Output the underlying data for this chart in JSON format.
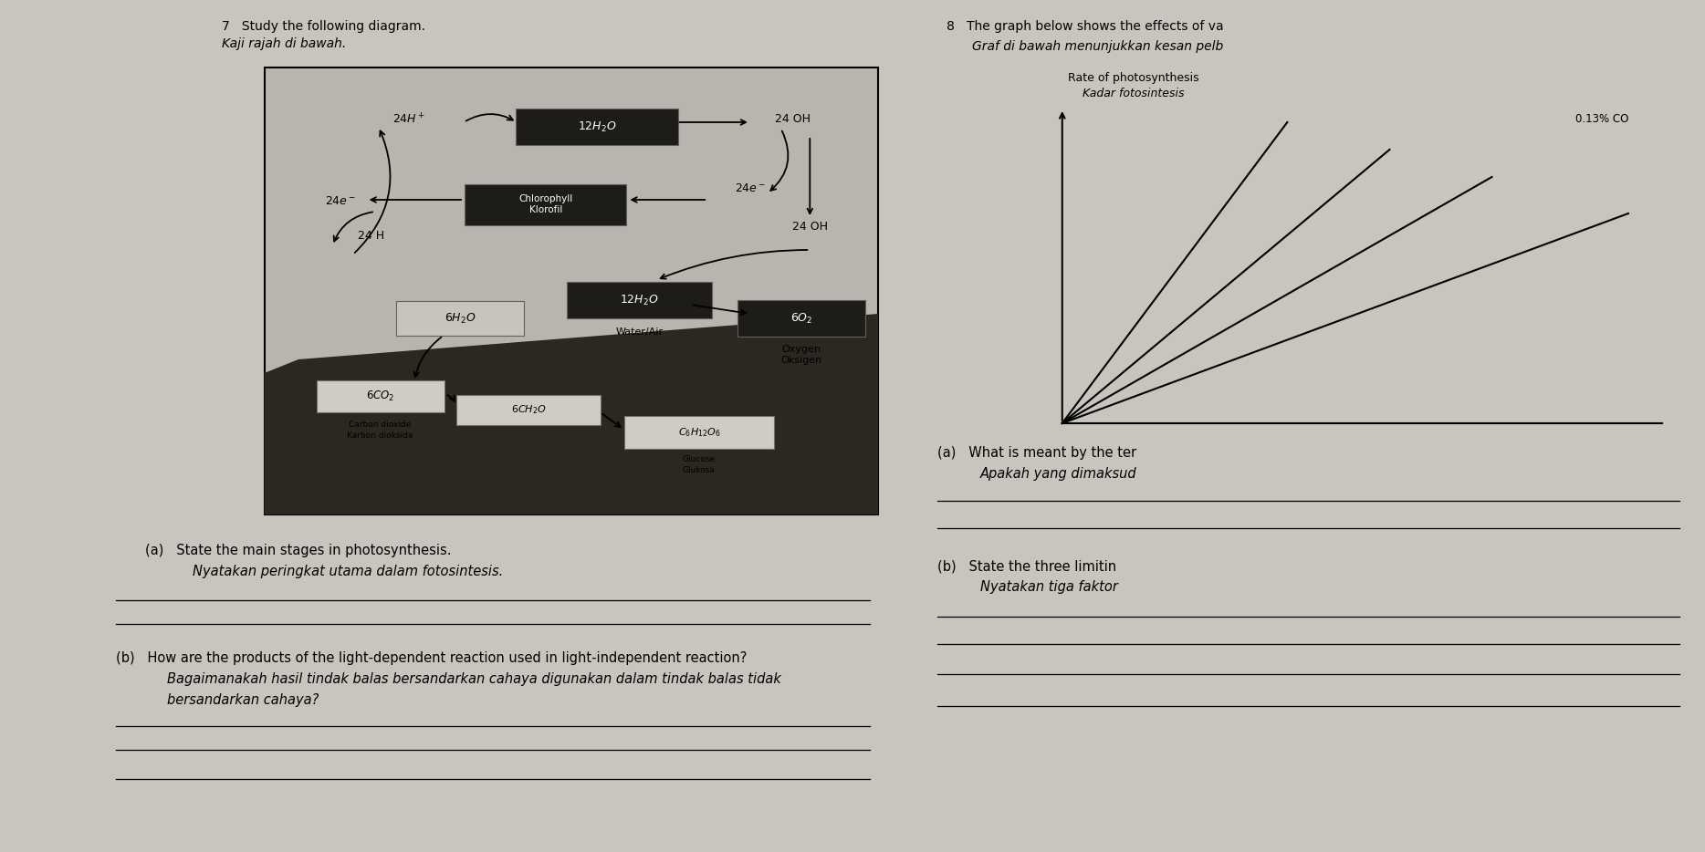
{
  "left_bg": "#c8c4be",
  "right_bg": "#d0ccc6",
  "diagram_bg": "#b8b4ae",
  "dark_slope": "#2a2820",
  "dark_box": "#1e1c18",
  "light_box": "#d4d0ca",
  "title_7": "7   Study the following diagram.",
  "subtitle_7": "Kaji rajah di bawah.",
  "title_8": "8   The graph below shows the effects of va",
  "subtitle_8": "Graf di bawah menunjukkan kesan pelb",
  "graph_ylabel1": "Rate of photosynthesis",
  "graph_ylabel2": "Kadar fotosintesis",
  "co2_label": "0.13% CO",
  "qa_label": "(a)   State the main stages in photosynthesis.",
  "qa_italic": "Nyatakan peringkat utama dalam fotosintesis.",
  "qb_label": "(b)   How are the products of the light-dependent reaction used in light-independent reaction?",
  "qb_italic1": "Bagaimanakah hasil tindak balas bersandarkan cahaya digunakan dalam tindak balas tidak",
  "qb_italic2": "bersandarkan cahaya?",
  "q8a_label": "(a)   What is meant by the ter",
  "q8a_italic": "Apakah yang dimaksud",
  "q8b_label": "(b)   State the three limitin",
  "q8b_italic": "Nyatakan tiga faktor"
}
